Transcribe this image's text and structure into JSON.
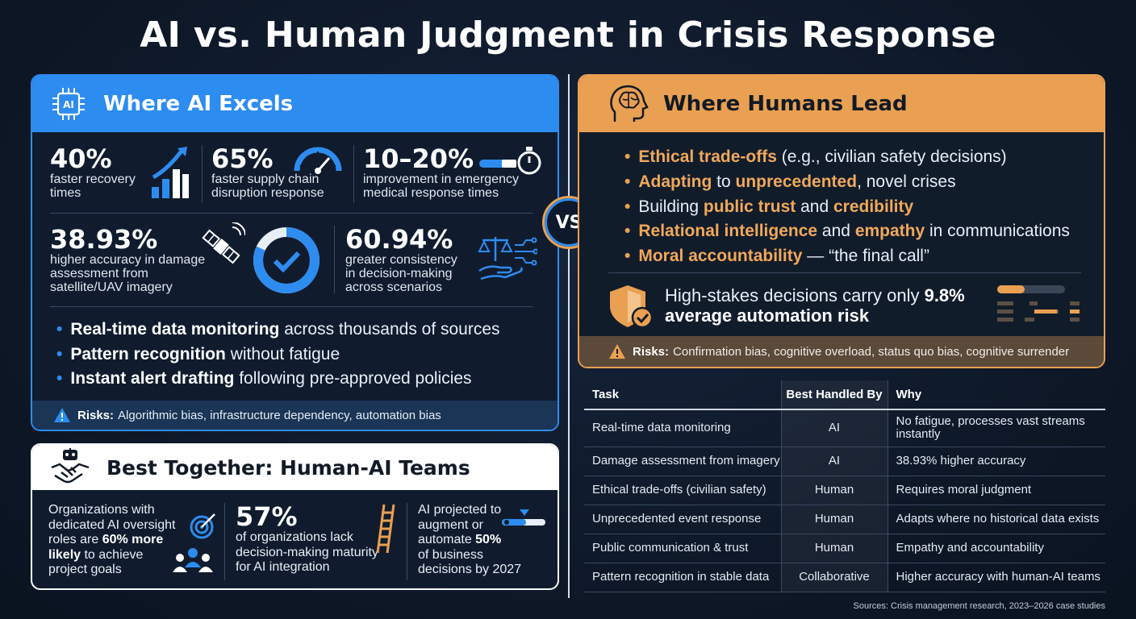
{
  "title": "AI vs. Human Judgment in Crisis Response",
  "vs_label": "VS",
  "ai": {
    "header": "Where AI Excels",
    "chip_label": "AI",
    "stats_row1": [
      {
        "value": "40%",
        "desc_lines": [
          "faster recovery",
          "times"
        ]
      },
      {
        "value": "65%",
        "desc_lines": [
          "faster supply chain",
          "disruption response"
        ]
      },
      {
        "value": "10–20%",
        "desc_lines": [
          "improvement in emergency",
          "medical response times"
        ]
      }
    ],
    "stats_row2": [
      {
        "value": "38.93%",
        "desc_lines": [
          "higher accuracy in damage",
          "assessment from",
          "satellite/UAV imagery"
        ]
      },
      {
        "value": "60.94%",
        "desc_lines": [
          "greater consistency",
          "in decision-making",
          "across scenarios"
        ]
      }
    ],
    "bullets": [
      {
        "bold": "Real-time data monitoring",
        "rest": " across thousands of sources"
      },
      {
        "bold": "Pattern recognition",
        "rest": " without fatigue"
      },
      {
        "bold": "Instant alert drafting",
        "rest": " following pre-approved policies"
      }
    ],
    "risks_label": "Risks:",
    "risks_text": "Algorithmic bias, infrastructure dependency, automation bias"
  },
  "humans": {
    "header": "Where Humans Lead",
    "bullets": [
      {
        "parts": [
          {
            "b": "Ethical trade-offs"
          },
          {
            "t": " (e.g., civilian safety decisions)"
          }
        ]
      },
      {
        "parts": [
          {
            "b": "Adapting"
          },
          {
            "t": " to "
          },
          {
            "b": "unprecedented"
          },
          {
            "t": ", novel crises"
          }
        ]
      },
      {
        "parts": [
          {
            "t": "Building "
          },
          {
            "b": "public trust"
          },
          {
            "t": " and "
          },
          {
            "b": "credibility"
          }
        ]
      },
      {
        "parts": [
          {
            "b": "Relational intelligence"
          },
          {
            "t": " and "
          },
          {
            "b": "empathy"
          },
          {
            "t": " in communications"
          }
        ]
      },
      {
        "parts": [
          {
            "b": "Moral accountability"
          },
          {
            "t": " — “the final call”"
          }
        ]
      }
    ],
    "stakes_line1": "High-stakes decisions carry only ",
    "stakes_value": "9.8%",
    "stakes_line2": "average automation risk",
    "risks_label": "Risks:",
    "risks_text": "Confirmation bias, cognitive overload, status quo bias, cognitive surrender"
  },
  "team": {
    "header": "Best Together: Human-AI Teams",
    "col1": {
      "l1": "Organizations with",
      "l2": "dedicated AI oversight",
      "l3a": "roles are ",
      "l3b": "60% more",
      "l4b": "likely",
      "l4a": " to achieve",
      "l5": "project goals"
    },
    "col2": {
      "value": "57%",
      "desc_lines": [
        "of organizations lack",
        "decision-making maturity",
        "for AI integration"
      ]
    },
    "col3": {
      "l1": "AI projected to",
      "l2": "augment or",
      "l3a": "automate ",
      "l3b": "50%",
      "l4": "of business",
      "l5": "decisions by 2027"
    }
  },
  "table": {
    "headers": [
      "Task",
      "Best Handled By",
      "Why"
    ],
    "rows": [
      [
        "Real-time data monitoring",
        "AI",
        "No fatigue, processes vast streams instantly"
      ],
      [
        "Damage assessment from imagery",
        "AI",
        "38.93% higher accuracy"
      ],
      [
        "Ethical trade-offs (civilian safety)",
        "Human",
        "Requires moral judgment"
      ],
      [
        "Unprecedented event response",
        "Human",
        "Adapts where no historical data exists"
      ],
      [
        "Public communication & trust",
        "Human",
        "Empathy and accountability"
      ],
      [
        "Pattern recognition in stable data",
        "Collaborative",
        "Higher accuracy with human-AI teams"
      ]
    ]
  },
  "sources": "Sources: Crisis management research, 2023–2026 case studies",
  "colors": {
    "ai_blue": "#2d8cf0",
    "human_orange": "#e9a052",
    "background": "#0f1a2a"
  }
}
